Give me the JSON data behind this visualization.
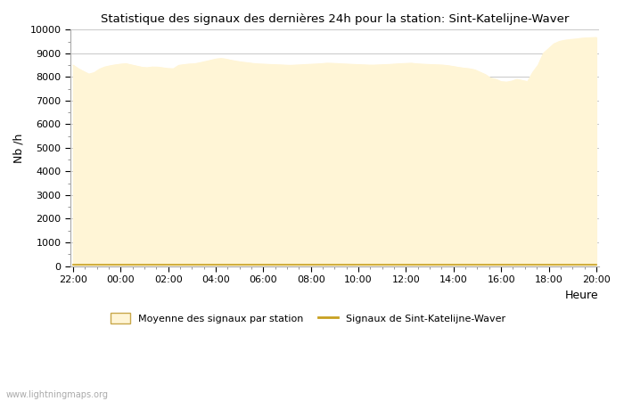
{
  "title": "Statistique des signaux des dernières 24h pour la station: Sint-Katelijne-Waver",
  "xlabel": "Heure",
  "ylabel": "Nb /h",
  "watermark": "www.lightningmaps.org",
  "ylim": [
    0,
    10000
  ],
  "yticks": [
    0,
    1000,
    2000,
    3000,
    4000,
    5000,
    6000,
    7000,
    8000,
    9000,
    10000
  ],
  "xtick_labels": [
    "22:00",
    "00:00",
    "02:00",
    "04:00",
    "06:00",
    "08:00",
    "10:00",
    "12:00",
    "14:00",
    "16:00",
    "18:00",
    "20:00"
  ],
  "fill_color": "#FFF5D6",
  "fill_edge_color": "#C8A84B",
  "line_color": "#C8A020",
  "legend_fill_label": "Moyenne des signaux par station",
  "legend_line_label": "Signaux de Sint-Katelijne-Waver",
  "background_color": "#ffffff",
  "grid_color": "#c8c8c8",
  "avg_y": [
    8500,
    8350,
    8230,
    8120,
    8180,
    8330,
    8420,
    8470,
    8510,
    8540,
    8560,
    8510,
    8460,
    8410,
    8390,
    8420,
    8415,
    8385,
    8355,
    8345,
    8490,
    8520,
    8545,
    8555,
    8600,
    8650,
    8700,
    8755,
    8780,
    8750,
    8700,
    8660,
    8625,
    8600,
    8570,
    8550,
    8540,
    8530,
    8520,
    8510,
    8500,
    8490,
    8500,
    8510,
    8525,
    8535,
    8545,
    8560,
    8580,
    8575,
    8565,
    8550,
    8540,
    8530,
    8520,
    8510,
    8500,
    8500,
    8510,
    8520,
    8530,
    8545,
    8560,
    8570,
    8580,
    8555,
    8540,
    8530,
    8520,
    8510,
    8500,
    8475,
    8440,
    8400,
    8370,
    8345,
    8300,
    8200,
    8100,
    7950,
    7900,
    7800,
    7780,
    7820,
    7900,
    7850,
    7800,
    8200,
    8500,
    9000,
    9200,
    9400,
    9500,
    9550,
    9580,
    9600,
    9630,
    9650,
    9660,
    9670
  ],
  "signal_y": [
    50,
    50,
    50,
    50,
    50,
    50,
    50,
    50,
    50,
    50,
    50,
    50,
    50,
    50,
    50,
    50,
    50,
    50,
    50,
    50,
    50,
    50,
    50,
    50,
    50,
    50,
    50,
    50,
    50,
    50,
    50,
    50,
    50,
    50,
    50,
    50,
    50,
    50,
    50,
    50,
    50,
    50,
    50,
    50,
    50,
    50,
    50,
    50,
    50,
    50,
    50,
    50,
    50,
    50,
    50,
    50,
    50,
    50,
    50,
    50,
    50,
    50,
    50,
    50,
    50,
    50,
    50,
    50,
    50,
    50,
    50,
    50,
    50,
    50,
    50,
    50,
    50,
    50,
    50,
    50,
    50,
    50,
    50,
    50,
    50,
    50,
    50,
    50,
    50,
    50,
    50,
    50,
    50,
    50,
    50,
    50,
    50,
    50,
    50,
    50
  ]
}
